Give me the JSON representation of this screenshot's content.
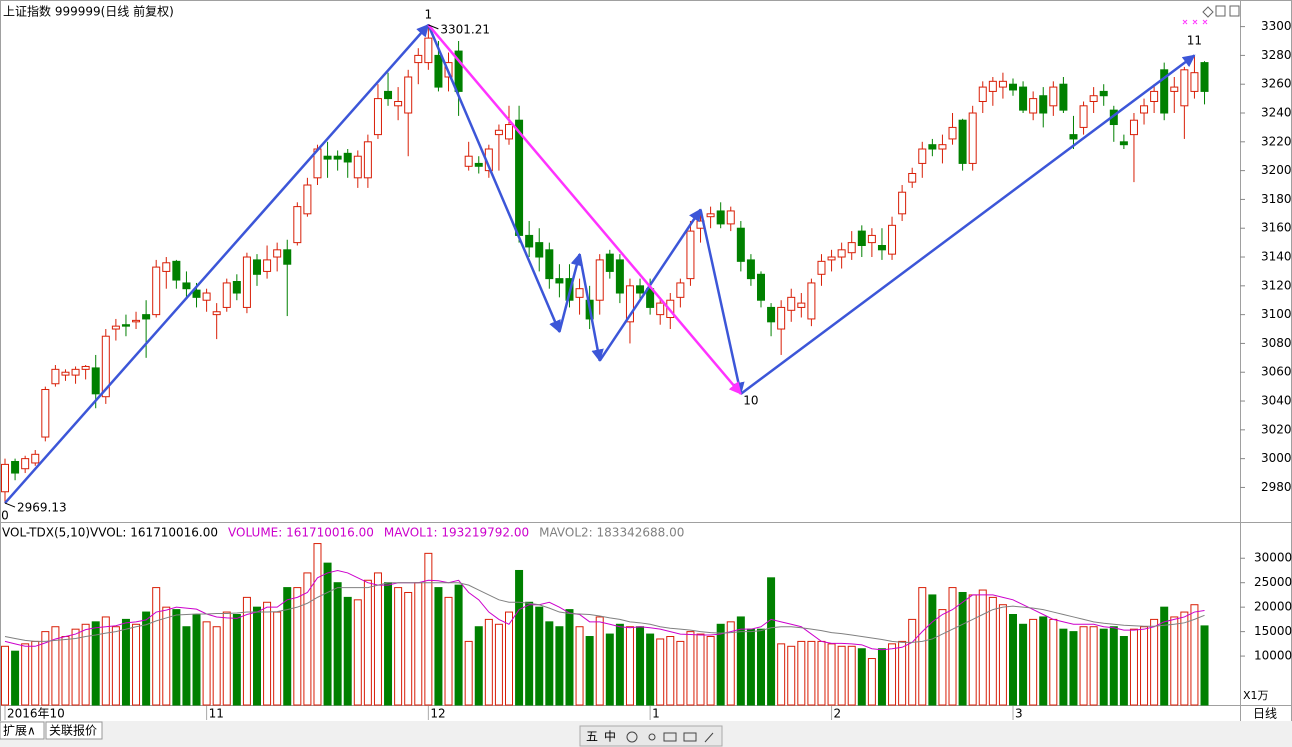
{
  "chart_data": [
    {
      "type": "candlestick",
      "title": "上证指数 999999(日线 前复权)",
      "up_color": "#d81e06",
      "down_color": "#008000",
      "open": [
        2977,
        2998,
        2993,
        2997,
        3015,
        3052,
        3058,
        3058,
        3062,
        3063,
        3043,
        3090,
        3093,
        3095,
        3100,
        3100,
        3130,
        3137,
        3122,
        3117,
        3110,
        3100,
        3105,
        3123,
        3105,
        3138,
        3130,
        3140,
        3145,
        3150,
        3170,
        3195,
        3210,
        3210,
        3212,
        3195,
        3195,
        3225,
        3255,
        3245,
        3240,
        3275,
        3275,
        3280,
        3265,
        3283,
        3203,
        3205,
        3200,
        3225,
        3222,
        3235,
        3155,
        3150,
        3145,
        3125,
        3125,
        3112,
        3110,
        3110,
        3142,
        3138,
        3095,
        3120,
        3118,
        3100,
        3098,
        3112,
        3125,
        3160,
        3168,
        3172,
        3163,
        3160,
        3138,
        3128,
        3105,
        3090,
        3103,
        3105,
        3097,
        3128,
        3138,
        3140,
        3143,
        3158,
        3150,
        3148,
        3142,
        3170,
        3192,
        3205,
        3218,
        3215,
        3222,
        3235,
        3205,
        3248,
        3255,
        3258,
        3260,
        3258,
        3240,
        3252,
        3245,
        3260,
        3225,
        3230,
        3248,
        3255,
        3242,
        3220,
        3225,
        3240,
        3248,
        3270,
        3255,
        3245,
        3255,
        3275
      ],
      "high": [
        3000,
        3000,
        3002,
        3006,
        3050,
        3065,
        3062,
        3064,
        3065,
        3072,
        3090,
        3097,
        3100,
        3102,
        3110,
        3138,
        3140,
        3138,
        3130,
        3122,
        3118,
        3108,
        3125,
        3128,
        3143,
        3142,
        3148,
        3150,
        3152,
        3178,
        3195,
        3218,
        3220,
        3214,
        3215,
        3214,
        3225,
        3260,
        3268,
        3258,
        3270,
        3285,
        3301.21,
        3290,
        3282,
        3290,
        3220,
        3210,
        3218,
        3232,
        3245,
        3245,
        3165,
        3160,
        3150,
        3135,
        3135,
        3125,
        3120,
        3142,
        3145,
        3142,
        3125,
        3125,
        3125,
        3112,
        3115,
        3125,
        3165,
        3170,
        3175,
        3178,
        3175,
        3165,
        3142,
        3130,
        3108,
        3110,
        3118,
        3115,
        3125,
        3142,
        3145,
        3150,
        3158,
        3162,
        3160,
        3160,
        3168,
        3190,
        3202,
        3220,
        3222,
        3225,
        3240,
        3236,
        3245,
        3262,
        3265,
        3268,
        3264,
        3262,
        3255,
        3258,
        3262,
        3265,
        3238,
        3248,
        3258,
        3260,
        3245,
        3225,
        3240,
        3250,
        3260,
        3275,
        3265,
        3272,
        3280,
        3276
      ],
      "low": [
        2969.13,
        2985,
        2990,
        2995,
        3012,
        3050,
        3054,
        3052,
        3055,
        3035,
        3038,
        3082,
        3085,
        3090,
        3070,
        3098,
        3118,
        3118,
        3112,
        3105,
        3102,
        3083,
        3102,
        3110,
        3101,
        3120,
        3125,
        3130,
        3099,
        3148,
        3168,
        3190,
        3195,
        3200,
        3195,
        3188,
        3188,
        3222,
        3245,
        3235,
        3210,
        3260,
        3270,
        3255,
        3255,
        3238,
        3200,
        3198,
        3195,
        3200,
        3218,
        3150,
        3140,
        3130,
        3118,
        3112,
        3105,
        3100,
        3090,
        3100,
        3125,
        3108,
        3080,
        3110,
        3100,
        3093,
        3090,
        3105,
        3120,
        3150,
        3160,
        3160,
        3158,
        3130,
        3120,
        3105,
        3085,
        3072,
        3095,
        3098,
        3092,
        3120,
        3130,
        3132,
        3138,
        3140,
        3140,
        3138,
        3138,
        3165,
        3188,
        3195,
        3210,
        3205,
        3218,
        3200,
        3200,
        3240,
        3245,
        3250,
        3252,
        3240,
        3235,
        3230,
        3238,
        3240,
        3215,
        3225,
        3240,
        3245,
        3220,
        3215,
        3192,
        3232,
        3240,
        3235,
        3240,
        3222,
        3250,
        3246
      ],
      "close": [
        2996,
        2990,
        3000,
        3003,
        3048,
        3062,
        3060,
        3062,
        3064,
        3045,
        3085,
        3092,
        3092,
        3096,
        3097,
        3133,
        3136,
        3124,
        3118,
        3112,
        3115,
        3102,
        3122,
        3115,
        3140,
        3128,
        3138,
        3145,
        3135,
        3175,
        3190,
        3215,
        3208,
        3208,
        3206,
        3210,
        3220,
        3250,
        3250,
        3248,
        3265,
        3280,
        3292,
        3258,
        3275,
        3255,
        3210,
        3203,
        3215,
        3228,
        3232,
        3155,
        3147,
        3140,
        3125,
        3122,
        3110,
        3118,
        3097,
        3138,
        3130,
        3115,
        3120,
        3115,
        3105,
        3108,
        3110,
        3122,
        3158,
        3165,
        3170,
        3163,
        3172,
        3137,
        3125,
        3110,
        3095,
        3105,
        3112,
        3108,
        3122,
        3137,
        3140,
        3145,
        3150,
        3148,
        3155,
        3145,
        3162,
        3185,
        3198,
        3215,
        3215,
        3218,
        3230,
        3205,
        3240,
        3258,
        3262,
        3262,
        3256,
        3242,
        3250,
        3240,
        3258,
        3242,
        3222,
        3245,
        3252,
        3252,
        3232,
        3218,
        3235,
        3245,
        3255,
        3240,
        3258,
        3270,
        3268,
        3255
      ],
      "ylim": [
        2956,
        3315
      ],
      "yticks": [
        2980,
        3000,
        3020,
        3040,
        3060,
        3080,
        3100,
        3120,
        3140,
        3160,
        3180,
        3200,
        3220,
        3240,
        3260,
        3280,
        3300
      ],
      "date_labels": [
        {
          "index": 0,
          "label": "2016年10"
        },
        {
          "index": 20,
          "label": "11"
        },
        {
          "index": 42,
          "label": "12"
        },
        {
          "index": 64,
          "label": "1"
        },
        {
          "index": 82,
          "label": "2"
        },
        {
          "index": 100,
          "label": "3"
        }
      ],
      "annotations": [
        {
          "text": "3301.21",
          "index": 42,
          "price": 3301.21
        },
        {
          "text": "2969.13",
          "index": 0,
          "price": 2969.13
        }
      ],
      "wave_lines": [
        {
          "color": "#3c56d8",
          "points": [
            [
              0,
              2969.13
            ],
            [
              42,
              3301.21
            ],
            [
              55,
              3088
            ],
            [
              57,
              3142
            ],
            [
              59,
              3068
            ],
            [
              69,
              3173
            ],
            [
              73,
              3045
            ],
            [
              118,
              3280
            ]
          ]
        },
        {
          "color": "#ff33ff",
          "points": [
            [
              42,
              3301.21
            ],
            [
              73,
              3045
            ]
          ]
        }
      ],
      "wave_labels": [
        {
          "text": "0",
          "index": 0,
          "price": 2960
        },
        {
          "text": "1",
          "index": 42,
          "price": 3308
        },
        {
          "text": "10",
          "index": 74,
          "price": 3040
        },
        {
          "text": "11",
          "index": 118,
          "price": 3290
        }
      ]
    },
    {
      "type": "bar",
      "title": "VOL-TDX(5,10)",
      "unit_label": "X1万",
      "readouts": [
        {
          "text": "VVOL: 161710016.00",
          "color": "#000000"
        },
        {
          "text": "VOLUME: 161710016.00",
          "color": "#cc00cc"
        },
        {
          "text": "MAVOL1: 193219792.00",
          "color": "#cc00cc"
        },
        {
          "text": "MAVOL2: 183342688.00",
          "color": "#808080"
        }
      ],
      "values": [
        12000,
        11000,
        12500,
        13000,
        15000,
        16000,
        14000,
        15500,
        16500,
        17000,
        18000,
        16000,
        17500,
        16500,
        19000,
        24000,
        20000,
        19500,
        16000,
        18500,
        17000,
        16000,
        19000,
        18500,
        22000,
        20000,
        21000,
        19000,
        24000,
        24000,
        27000,
        33000,
        29000,
        25000,
        22000,
        21500,
        25500,
        27000,
        25000,
        24000,
        23000,
        25000,
        31000,
        24000,
        22000,
        24500,
        13000,
        16000,
        17500,
        16500,
        19000,
        27500,
        21000,
        20000,
        17000,
        16000,
        19500,
        16000,
        14000,
        18000,
        14500,
        16500,
        16000,
        16000,
        14500,
        13500,
        14000,
        13000,
        15000,
        14500,
        14000,
        16500,
        17000,
        18000,
        15500,
        15500,
        26000,
        12500,
        12000,
        13000,
        13000,
        13000,
        12500,
        12000,
        12000,
        11500,
        9500,
        11500,
        12500,
        13000,
        17500,
        24000,
        22500,
        19500,
        24000,
        23000,
        22500,
        23500,
        22000,
        20500,
        18500,
        16500,
        17500,
        18000,
        17500,
        15500,
        15000,
        16000,
        16000,
        15500,
        16000,
        14000,
        15500,
        16000,
        17500,
        20000,
        18000,
        19000,
        20500,
        16171
      ],
      "series": [
        {
          "color": "#cc00cc",
          "values": [
            13000,
            12500,
            12000,
            12000,
            12700,
            13500,
            14000,
            14500,
            15400,
            15800,
            16000,
            16200,
            16800,
            17000,
            17400,
            19000,
            19400,
            20000,
            19800,
            19600,
            18600,
            18000,
            17800,
            17700,
            18500,
            19000,
            20000,
            20000,
            21500,
            22000,
            23000,
            26000,
            27000,
            27500,
            27000,
            26000,
            25000,
            24500,
            24500,
            25000,
            25000,
            25000,
            25500,
            25400,
            25000,
            25500,
            23000,
            21500,
            19000,
            17500,
            16500,
            19500,
            20500,
            20500,
            21000,
            20000,
            18800,
            18500,
            17000,
            17000,
            16500,
            16000,
            15800,
            16000,
            15800,
            15500,
            15000,
            14500,
            14400,
            14300,
            14300,
            14500,
            15000,
            15500,
            15500,
            16000,
            17500,
            17000,
            16500,
            16000,
            14500,
            13000,
            12600,
            12600,
            12500,
            12300,
            11500,
            11300,
            11500,
            11800,
            12800,
            15000,
            17000,
            18500,
            19500,
            21000,
            22500,
            22500,
            22500,
            22000,
            21500,
            20500,
            19500,
            18500,
            17500,
            17000,
            16500,
            16500,
            16500,
            16000,
            15800,
            15300,
            15300,
            15500,
            16000,
            17000,
            17500,
            18000,
            19000,
            19322
          ]
        },
        {
          "color": "#808080",
          "values": [
            14000,
            13600,
            13200,
            13000,
            13000,
            13200,
            13400,
            13600,
            14000,
            14300,
            14700,
            15000,
            15500,
            16000,
            16400,
            17200,
            17800,
            18400,
            18500,
            18600,
            18600,
            18700,
            18700,
            18800,
            19000,
            19000,
            19000,
            19100,
            19500,
            20000,
            20800,
            22000,
            23000,
            24000,
            24000,
            24000,
            24000,
            24500,
            25000,
            25000,
            25000,
            25000,
            25000,
            25000,
            25000,
            25000,
            24500,
            23500,
            22500,
            21500,
            21000,
            21000,
            20800,
            20500,
            19800,
            19000,
            18700,
            18600,
            18500,
            18200,
            17800,
            17500,
            17000,
            16800,
            16500,
            16000,
            15700,
            15500,
            15300,
            15000,
            14800,
            14700,
            14800,
            15000,
            15000,
            15200,
            15800,
            16000,
            16000,
            15800,
            15500,
            15200,
            14800,
            14600,
            14300,
            14000,
            13700,
            13400,
            13000,
            12800,
            12800,
            13000,
            13500,
            14500,
            15500,
            16500,
            17500,
            18500,
            19500,
            20000,
            20200,
            20000,
            19800,
            19500,
            19000,
            18500,
            18000,
            17500,
            17000,
            16700,
            16500,
            16300,
            16200,
            16100,
            16100,
            16300,
            16500,
            16800,
            17500,
            18334
          ]
        }
      ],
      "ylim": [
        0,
        37000
      ],
      "yticks": [
        10000,
        15000,
        20000,
        25000,
        30000
      ]
    }
  ],
  "ui": {
    "period": "日线",
    "tabs": [
      "扩展∧",
      "关联报价"
    ],
    "toolbar": [
      "五",
      "中"
    ]
  }
}
